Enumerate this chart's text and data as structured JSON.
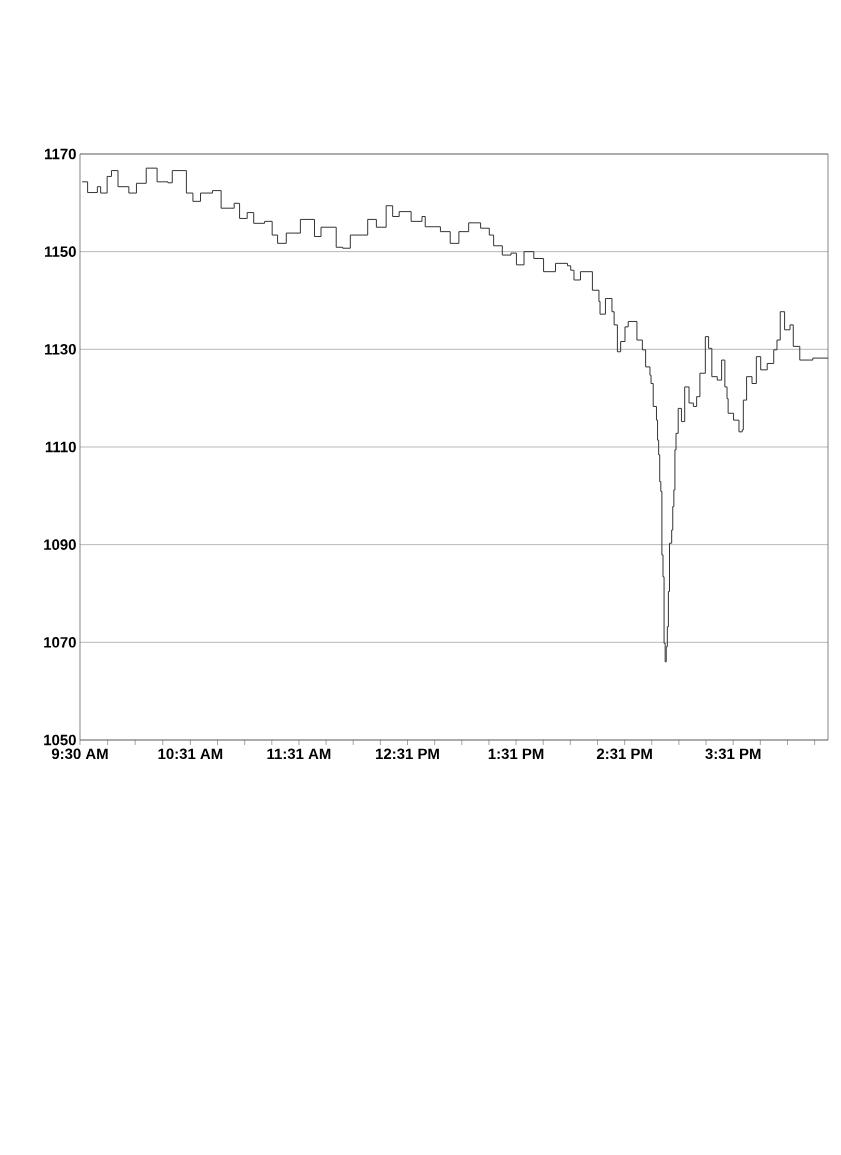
{
  "chart_data": {
    "type": "step",
    "color": "#333333",
    "grid": "y",
    "xlim": [
      9.5,
      16.39
    ],
    "ylim": [
      1050,
      1170
    ],
    "yticks": [
      1050,
      1070,
      1090,
      1110,
      1130,
      1150,
      1170
    ],
    "xticks": [
      {
        "value": 9.5,
        "label": "9:30 AM"
      },
      {
        "value": 9.7542,
        "label": null
      },
      {
        "value": 10.0083,
        "label": null
      },
      {
        "value": 10.2625,
        "label": null
      },
      {
        "value": 10.5167,
        "label": "10:31 AM"
      },
      {
        "value": 10.7667,
        "label": null
      },
      {
        "value": 11.0167,
        "label": null
      },
      {
        "value": 11.2667,
        "label": null
      },
      {
        "value": 11.5167,
        "label": "11:31 AM"
      },
      {
        "value": 11.7667,
        "label": null
      },
      {
        "value": 12.0167,
        "label": null
      },
      {
        "value": 12.2667,
        "label": null
      },
      {
        "value": 12.5167,
        "label": "12:31 PM"
      },
      {
        "value": 12.7667,
        "label": null
      },
      {
        "value": 13.0167,
        "label": null
      },
      {
        "value": 13.2667,
        "label": null
      },
      {
        "value": 13.5167,
        "label": "1:31 PM"
      },
      {
        "value": 13.7667,
        "label": null
      },
      {
        "value": 14.0167,
        "label": null
      },
      {
        "value": 14.2667,
        "label": null
      },
      {
        "value": 14.5167,
        "label": "2:31 PM"
      },
      {
        "value": 14.7667,
        "label": null
      },
      {
        "value": 15.0167,
        "label": null
      },
      {
        "value": 15.2667,
        "label": null
      },
      {
        "value": 15.5167,
        "label": "3:31 PM"
      },
      {
        "value": 15.7667,
        "label": null
      },
      {
        "value": 16.0167,
        "label": null
      },
      {
        "value": 16.2667,
        "label": null
      }
    ],
    "x": [
      9.52,
      9.57,
      9.66,
      9.69,
      9.75,
      9.79,
      9.85,
      9.95,
      10.02,
      10.11,
      10.21,
      10.31,
      10.35,
      10.48,
      10.54,
      10.61,
      10.72,
      10.8,
      10.92,
      10.97,
      11.04,
      11.1,
      11.2,
      11.27,
      11.32,
      11.4,
      11.53,
      11.66,
      11.72,
      11.86,
      11.92,
      11.99,
      12.15,
      12.23,
      12.32,
      12.38,
      12.44,
      12.55,
      12.65,
      12.68,
      12.82,
      12.91,
      12.99,
      13.08,
      13.19,
      13.27,
      13.31,
      13.39,
      13.47,
      13.52,
      13.59,
      13.68,
      13.77,
      13.88,
      13.99,
      14.02,
      14.05,
      14.11,
      14.22,
      14.28,
      14.29,
      14.34,
      14.4,
      14.42,
      14.45,
      14.48,
      14.52,
      14.55,
      14.63,
      14.68,
      14.71,
      14.75,
      14.76,
      14.78,
      14.81,
      14.82,
      14.83,
      14.84,
      14.85,
      14.86,
      14.87,
      14.88,
      14.89,
      14.9,
      14.91,
      14.92,
      14.93,
      14.95,
      14.96,
      14.97,
      14.98,
      14.99,
      15.01,
      15.04,
      15.07,
      15.11,
      15.15,
      15.18,
      15.21,
      15.26,
      15.29,
      15.32,
      15.37,
      15.41,
      15.44,
      15.46,
      15.47,
      15.52,
      15.57,
      15.6,
      15.61,
      15.64,
      15.69,
      15.73,
      15.77,
      15.83,
      15.89,
      15.92,
      15.95,
      15.99,
      16.04,
      16.07,
      16.13,
      16.25,
      16.39
    ],
    "values": [
      1164.3,
      1162.1,
      1163.3,
      1162.0,
      1165.4,
      1166.6,
      1163.3,
      1162.0,
      1164.0,
      1167.1,
      1164.3,
      1164.1,
      1166.6,
      1162.0,
      1160.3,
      1162.0,
      1162.5,
      1158.9,
      1159.9,
      1156.8,
      1158.0,
      1155.8,
      1156.2,
      1153.4,
      1151.7,
      1153.8,
      1156.6,
      1153.1,
      1155.0,
      1150.9,
      1150.7,
      1153.4,
      1156.6,
      1155.0,
      1159.4,
      1157.2,
      1158.2,
      1156.2,
      1157.2,
      1155.1,
      1154.1,
      1151.7,
      1154.1,
      1155.9,
      1154.8,
      1153.4,
      1151.2,
      1149.3,
      1149.7,
      1147.3,
      1150.0,
      1148.6,
      1145.9,
      1147.6,
      1147.1,
      1146.2,
      1144.2,
      1145.9,
      1142.1,
      1139.8,
      1137.2,
      1140.4,
      1137.7,
      1135.0,
      1129.5,
      1131.6,
      1134.6,
      1135.7,
      1131.9,
      1129.9,
      1126.4,
      1124.7,
      1123.0,
      1118.3,
      1115.5,
      1111.4,
      1108.4,
      1102.9,
      1100.9,
      1087.9,
      1083.4,
      1069.8,
      1066.0,
      1069.1,
      1073.2,
      1080.4,
      1090.3,
      1093.0,
      1097.8,
      1101.2,
      1109.4,
      1112.8,
      1117.9,
      1115.2,
      1122.3,
      1119.0,
      1118.3,
      1120.3,
      1125.1,
      1132.6,
      1130.2,
      1124.4,
      1123.7,
      1127.8,
      1122.3,
      1119.9,
      1116.9,
      1115.5,
      1113.1,
      1113.5,
      1119.6,
      1124.4,
      1123.0,
      1128.5,
      1125.8,
      1127.1,
      1129.9,
      1131.9,
      1137.7,
      1134.0,
      1135.0,
      1130.6,
      1127.8,
      1128.2,
      1128.2
    ]
  }
}
